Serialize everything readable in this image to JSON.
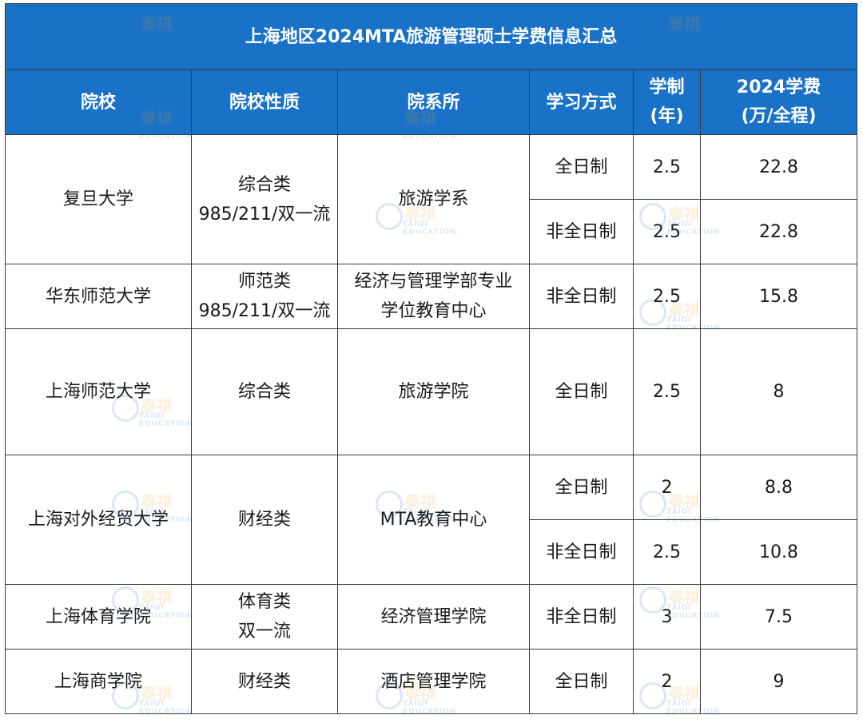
{
  "title": "上海地区2024MTA旅游管理硕士学费信息汇总",
  "headers": {
    "school": "院校",
    "nature": "院校性质",
    "dept": "院系所",
    "mode": "学习方式",
    "years_1": "学制",
    "years_2": "(年)",
    "fee_1": "2024学费",
    "fee_2": "(万/全程)"
  },
  "rows": [
    {
      "school": "复旦大学",
      "nature_1": "综合类",
      "nature_2": "985/211/双一流",
      "dept_1": "旅游学系",
      "dept_2": "",
      "modes": [
        {
          "mode": "全日制",
          "years": "2.5",
          "fee": "22.8"
        },
        {
          "mode": "非全日制",
          "years": "2.5",
          "fee": "22.8"
        }
      ]
    },
    {
      "school": "华东师范大学",
      "nature_1": "师范类",
      "nature_2": "985/211/双一流",
      "dept_1": "经济与管理学部专业",
      "dept_2": "学位教育中心",
      "modes": [
        {
          "mode": "非全日制",
          "years": "2.5",
          "fee": "15.8"
        }
      ]
    },
    {
      "school": "上海师范大学",
      "nature_1": "综合类",
      "nature_2": "",
      "dept_1": "旅游学院",
      "dept_2": "",
      "modes": [
        {
          "mode": "全日制",
          "years": "2.5",
          "fee": "8"
        }
      ]
    },
    {
      "school": "上海对外经贸大学",
      "nature_1": "财经类",
      "nature_2": "",
      "dept_1": "MTA教育中心",
      "dept_2": "",
      "modes": [
        {
          "mode": "全日制",
          "years": "2",
          "fee": "8.8"
        },
        {
          "mode": "非全日制",
          "years": "2.5",
          "fee": "10.8"
        }
      ]
    },
    {
      "school": "上海体育学院",
      "nature_1": "体育类",
      "nature_2": "双一流",
      "dept_1": "经济管理学院",
      "dept_2": "",
      "modes": [
        {
          "mode": "非全日制",
          "years": "3",
          "fee": "7.5"
        }
      ]
    },
    {
      "school": "上海商学院",
      "nature_1": "财经类",
      "nature_2": "",
      "dept_1": "酒店管理学院",
      "dept_2": "",
      "modes": [
        {
          "mode": "全日制",
          "years": "2",
          "fee": "9"
        }
      ]
    }
  ],
  "watermark": {
    "brand": "泰祺",
    "sub": "TAIQI EDUCATION"
  },
  "colors": {
    "header_bg": "#1971c8",
    "header_text": "#ffffff",
    "border": "#3a3a3a",
    "watermark_orange": "#f0a020"
  }
}
